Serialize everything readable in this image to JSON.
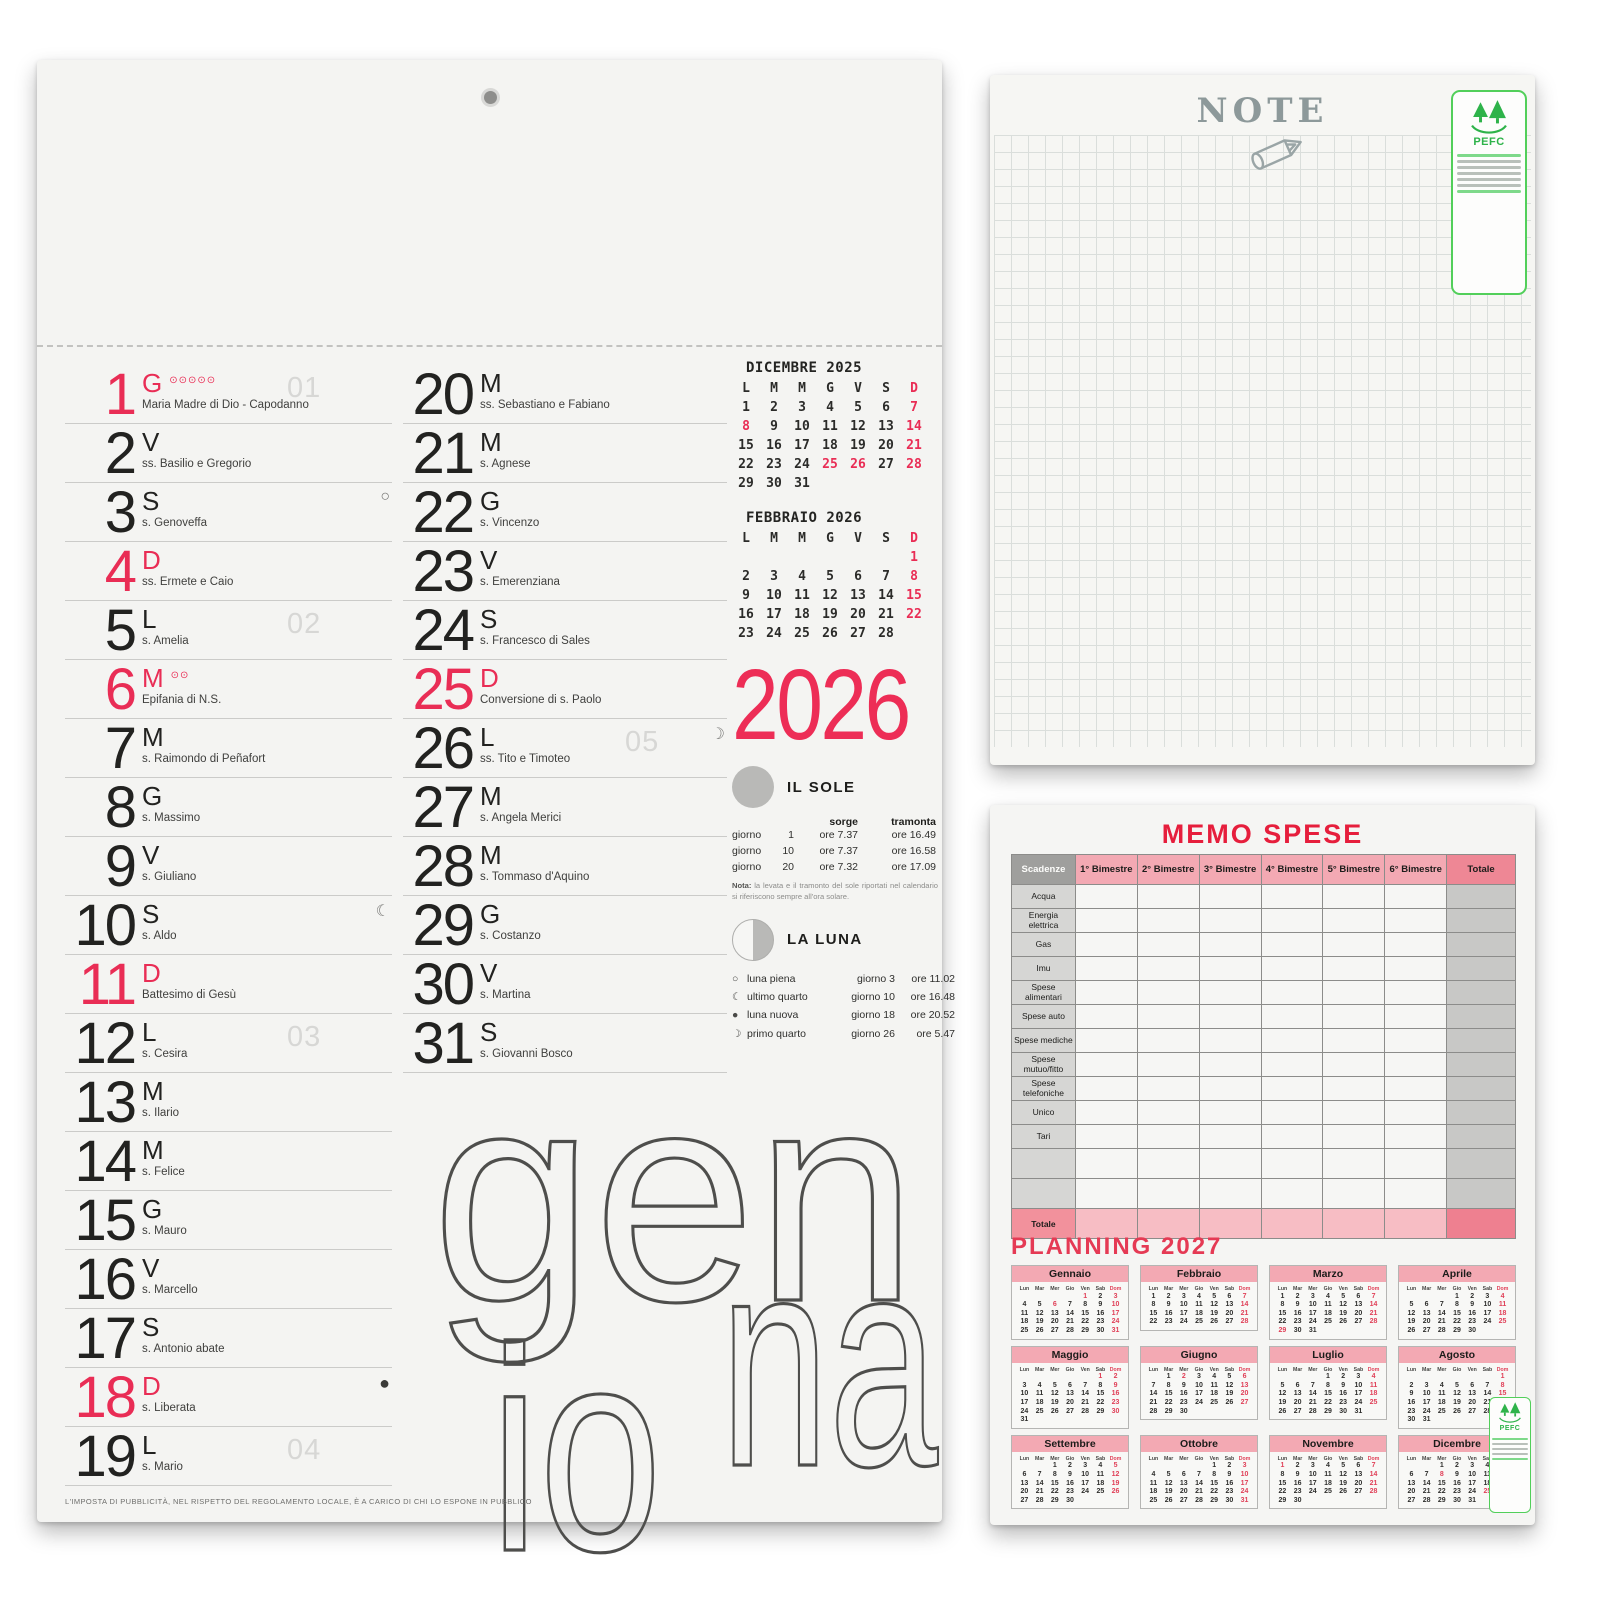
{
  "left_calendar": {
    "year": "2026",
    "month_art": {
      "part1": "gen",
      "part2": "na",
      "part3": "io"
    },
    "footer": "L'IMPOSTA DI PUBBLICITÀ, NEL RISPETTO DEL REGOLAMENTO LOCALE, È A CARICO DI CHI LO ESPONE IN PUBBLICO",
    "dow_headers": [
      "L",
      "M",
      "M",
      "G",
      "V",
      "S",
      "D"
    ],
    "mini_months": [
      {
        "title": "DICEMBRE 2025",
        "off": 0,
        "days": 31,
        "red": [
          7,
          8,
          14,
          21,
          25,
          26,
          28
        ]
      },
      {
        "title": "FEBBRAIO 2026",
        "off": 6,
        "days": 28,
        "red": [
          1,
          8,
          15,
          22
        ]
      }
    ],
    "days": [
      {
        "n": 1,
        "w": "G",
        "s": "Maria Madre di Dio - Capodanno",
        "red": true,
        "week": "01",
        "marks": "⊙⊙⊙⊙⊙"
      },
      {
        "n": 2,
        "w": "V",
        "s": "ss. Basilio e Gregorio"
      },
      {
        "n": 3,
        "w": "S",
        "s": "s. Genoveffa",
        "moon": "○"
      },
      {
        "n": 4,
        "w": "D",
        "s": "ss. Ermete e Caio",
        "red": true
      },
      {
        "n": 5,
        "w": "L",
        "s": "s. Amelia",
        "week": "02"
      },
      {
        "n": 6,
        "w": "M",
        "s": "Epifania di N.S.",
        "red": true,
        "marks": "⊙⊙"
      },
      {
        "n": 7,
        "w": "M",
        "s": "s. Raimondo di Peñafort"
      },
      {
        "n": 8,
        "w": "G",
        "s": "s. Massimo"
      },
      {
        "n": 9,
        "w": "V",
        "s": "s. Giuliano"
      },
      {
        "n": 10,
        "w": "S",
        "s": "s. Aldo",
        "moon": "☾"
      },
      {
        "n": 11,
        "w": "D",
        "s": "Battesimo di Gesù",
        "red": true
      },
      {
        "n": 12,
        "w": "L",
        "s": "s. Cesira",
        "week": "03"
      },
      {
        "n": 13,
        "w": "M",
        "s": "s. Ilario"
      },
      {
        "n": 14,
        "w": "M",
        "s": "s. Felice"
      },
      {
        "n": 15,
        "w": "G",
        "s": "s. Mauro"
      },
      {
        "n": 16,
        "w": "V",
        "s": "s. Marcello"
      },
      {
        "n": 17,
        "w": "S",
        "s": "s. Antonio abate"
      },
      {
        "n": 18,
        "w": "D",
        "s": "s. Liberata",
        "red": true,
        "moon": "●"
      },
      {
        "n": 19,
        "w": "L",
        "s": "s. Mario",
        "week": "04"
      },
      {
        "n": 20,
        "w": "M",
        "s": "ss. Sebastiano e Fabiano"
      },
      {
        "n": 21,
        "w": "M",
        "s": "s. Agnese"
      },
      {
        "n": 22,
        "w": "G",
        "s": "s. Vincenzo"
      },
      {
        "n": 23,
        "w": "V",
        "s": "s. Emerenziana"
      },
      {
        "n": 24,
        "w": "S",
        "s": "s. Francesco di Sales"
      },
      {
        "n": 25,
        "w": "D",
        "s": "Conversione di s. Paolo",
        "red": true
      },
      {
        "n": 26,
        "w": "L",
        "s": "ss. Tito e Timoteo",
        "week": "05",
        "moon": "☽"
      },
      {
        "n": 27,
        "w": "M",
        "s": "s. Angela Merici"
      },
      {
        "n": 28,
        "w": "M",
        "s": "s. Tommaso d'Aquino"
      },
      {
        "n": 29,
        "w": "G",
        "s": "s. Costanzo"
      },
      {
        "n": 30,
        "w": "V",
        "s": "s. Martina"
      },
      {
        "n": 31,
        "w": "S",
        "s": "s. Giovanni Bosco"
      }
    ],
    "sole": {
      "title": "IL SOLE",
      "rise_label": "sorge",
      "set_label": "tramonta",
      "giorno_label": "giorno",
      "ore_label": "ore",
      "rows": [
        {
          "day": "1",
          "rise": "7.37",
          "set": "16.49"
        },
        {
          "day": "10",
          "rise": "7.37",
          "set": "16.58"
        },
        {
          "day": "20",
          "rise": "7.32",
          "set": "17.09"
        }
      ],
      "nota_label": "Nota:",
      "nota_text": "la levata e il tramonto del sole riportati nel calendario si riferiscono sempre all'ora solare."
    },
    "luna": {
      "title": "LA LUNA",
      "rows": [
        {
          "sym": "○",
          "name": "luna piena",
          "day": "3",
          "time": "11.02"
        },
        {
          "sym": "☾",
          "name": "ultimo quarto",
          "day": "10",
          "time": "16.48"
        },
        {
          "sym": "●",
          "name": "luna nuova",
          "day": "18",
          "time": "20.52"
        },
        {
          "sym": "☽",
          "name": "primo quarto",
          "day": "26",
          "time": "5.47"
        }
      ]
    }
  },
  "note_page": {
    "title": "NOTE",
    "pefc_label": "PEFC"
  },
  "memo_page": {
    "title": "MEMO SPESE",
    "table": {
      "header": [
        "Scadenze",
        "1° Bimestre",
        "2° Bimestre",
        "3° Bimestre",
        "4° Bimestre",
        "5° Bimestre",
        "6° Bimestre",
        "Totale"
      ],
      "rows": [
        "Acqua",
        "Energia elettrica",
        "Gas",
        "Imu",
        "Spese alimentari",
        "Spese auto",
        "Spese mediche",
        "Spese mutuo/fitto",
        "Spese telefoniche",
        "Unico",
        "Tari",
        "",
        ""
      ],
      "total_label": "Totale"
    },
    "planning": {
      "title": "PLANNING 2027",
      "dow": [
        "Lun",
        "Mar",
        "Mer",
        "Gio",
        "Ven",
        "Sab",
        "Dom"
      ],
      "months": [
        {
          "name": "Gennaio",
          "off": 4,
          "days": 31,
          "red": [
            1,
            3,
            6,
            10,
            17,
            24,
            31
          ]
        },
        {
          "name": "Febbraio",
          "off": 0,
          "days": 28,
          "red": [
            7,
            14,
            21,
            28
          ]
        },
        {
          "name": "Marzo",
          "off": 0,
          "days": 31,
          "red": [
            7,
            14,
            21,
            28,
            29
          ]
        },
        {
          "name": "Aprile",
          "off": 3,
          "days": 30,
          "red": [
            4,
            11,
            18,
            25
          ]
        },
        {
          "name": "Maggio",
          "off": 5,
          "days": 31,
          "red": [
            1,
            2,
            9,
            16,
            23,
            30
          ]
        },
        {
          "name": "Giugno",
          "off": 1,
          "days": 30,
          "red": [
            2,
            6,
            13,
            20,
            27
          ]
        },
        {
          "name": "Luglio",
          "off": 3,
          "days": 31,
          "red": [
            4,
            11,
            18,
            25
          ]
        },
        {
          "name": "Agosto",
          "off": 6,
          "days": 31,
          "red": [
            1,
            8,
            15,
            22,
            29
          ]
        },
        {
          "name": "Settembre",
          "off": 2,
          "days": 30,
          "red": [
            5,
            12,
            19,
            26
          ]
        },
        {
          "name": "Ottobre",
          "off": 4,
          "days": 31,
          "red": [
            3,
            10,
            17,
            24,
            31
          ]
        },
        {
          "name": "Novembre",
          "off": 0,
          "days": 30,
          "red": [
            1,
            7,
            14,
            21,
            28
          ]
        },
        {
          "name": "Dicembre",
          "off": 2,
          "days": 31,
          "red": [
            5,
            8,
            12,
            19,
            25,
            26
          ]
        }
      ]
    },
    "pefc_label": "PEFC"
  }
}
